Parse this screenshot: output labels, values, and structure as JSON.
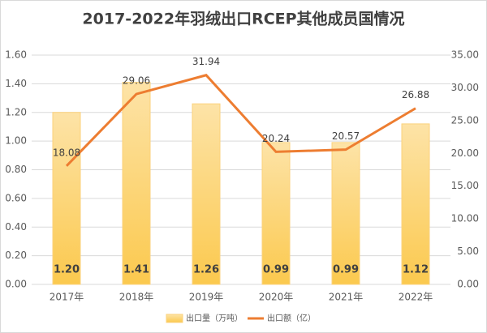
{
  "chart_data": {
    "type": "bar",
    "title": "2017-2022年羽绒出口RCEP其他成员国情况",
    "categories": [
      "2017年",
      "2018年",
      "2019年",
      "2020年",
      "2021年",
      "2022年"
    ],
    "series": [
      {
        "name": "出口量（万吨）",
        "type": "bar",
        "color": "#fbd27c",
        "values": [
          1.2,
          1.41,
          1.26,
          0.99,
          0.99,
          1.12
        ],
        "value_labels": [
          "1.20",
          "1.41",
          "1.26",
          "0.99",
          "0.99",
          "1.12"
        ]
      },
      {
        "name": "出口额（亿）",
        "type": "line",
        "axis": "y2",
        "color": "#ed7d31",
        "values": [
          18.08,
          29.06,
          31.94,
          20.24,
          20.57,
          26.88
        ]
      }
    ],
    "ylim": [
      0,
      1.6
    ],
    "yticks": [
      {
        "value": 0,
        "label": "0.00"
      },
      {
        "value": 0.2,
        "label": "0.20"
      },
      {
        "value": 0.4,
        "label": "0.40"
      },
      {
        "value": 0.6,
        "label": "0.60"
      },
      {
        "value": 0.8,
        "label": "0.80"
      },
      {
        "value": 1.0,
        "label": "1.00"
      },
      {
        "value": 1.2,
        "label": "1.20"
      },
      {
        "value": 1.4,
        "label": "1.40"
      },
      {
        "value": 1.6,
        "label": "1.60"
      }
    ],
    "y2lim": [
      0,
      35
    ],
    "y2ticks": [
      {
        "value": 0,
        "label": "0.00"
      },
      {
        "value": 5,
        "label": "5.00"
      },
      {
        "value": 10,
        "label": "10.00"
      },
      {
        "value": 15,
        "label": "15.00"
      },
      {
        "value": 20,
        "label": "20.00"
      },
      {
        "value": 25,
        "label": "25.00"
      },
      {
        "value": 30,
        "label": "30.00"
      },
      {
        "value": 35,
        "label": "35.00"
      }
    ],
    "grid": true,
    "legend": "bottom"
  }
}
